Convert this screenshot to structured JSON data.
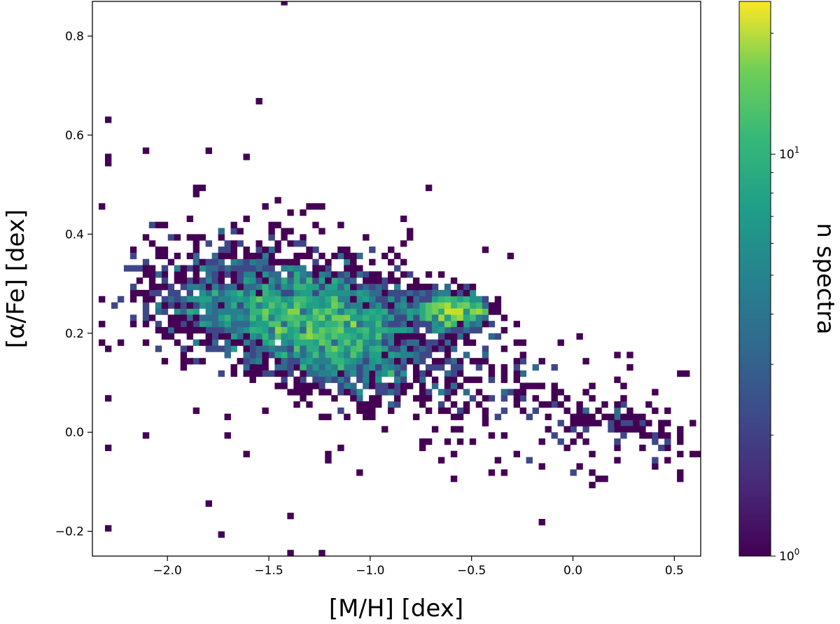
{
  "chart_data": {
    "type": "heatmap",
    "xlabel": "[M/H] [dex]",
    "ylabel": "[α/Fe] [dex]",
    "xlim": [
      -2.37,
      0.63
    ],
    "ylim": [
      -0.25,
      0.87
    ],
    "x_ticks": [
      {
        "value": -2.0,
        "label": "−2.0"
      },
      {
        "value": -1.5,
        "label": "−1.5"
      },
      {
        "value": -1.0,
        "label": "−1.0"
      },
      {
        "value": -0.5,
        "label": "−0.5"
      },
      {
        "value": 0.0,
        "label": "0.0"
      },
      {
        "value": 0.5,
        "label": "0.5"
      }
    ],
    "y_ticks": [
      {
        "value": -0.2,
        "label": "−0.2"
      },
      {
        "value": 0.0,
        "label": "0.0"
      },
      {
        "value": 0.2,
        "label": "0.2"
      },
      {
        "value": 0.4,
        "label": "0.4"
      },
      {
        "value": 0.6,
        "label": "0.6"
      },
      {
        "value": 0.8,
        "label": "0.8"
      }
    ],
    "colorbar": {
      "label": "n spectra",
      "scale": "log",
      "colormap": "viridis",
      "range": [
        1,
        24
      ],
      "ticks": [
        {
          "value": 1,
          "label_base": "10",
          "label_exp": "0"
        },
        {
          "value": 10,
          "label_base": "10",
          "label_exp": "1"
        }
      ]
    },
    "grid": false,
    "bin_size": {
      "x": 0.031,
      "y": 0.0125
    },
    "clusters": [
      {
        "center": [
          -1.35,
          0.24
        ],
        "count": 2200,
        "spread": [
          0.33,
          0.055
        ],
        "corr": -0.25
      },
      {
        "center": [
          -1.15,
          0.16
        ],
        "count": 700,
        "spread": [
          0.25,
          0.05
        ],
        "corr": -0.4
      },
      {
        "center": [
          -0.6,
          0.245
        ],
        "count": 500,
        "spread": [
          0.1,
          0.018
        ],
        "corr": 0
      },
      {
        "center": [
          -0.5,
          0.1
        ],
        "count": 350,
        "spread": [
          0.5,
          0.09
        ],
        "corr": -0.55
      },
      {
        "center": [
          0.25,
          0.02
        ],
        "count": 60,
        "spread": [
          0.18,
          0.02
        ],
        "corr": -0.6
      },
      {
        "center": [
          -1.6,
          0.33
        ],
        "count": 220,
        "spread": [
          0.4,
          0.06
        ],
        "corr": 0
      }
    ],
    "isolated_points": [
      [
        -1.42,
        0.87
      ],
      [
        -1.55,
        0.665
      ],
      [
        -2.28,
        0.635
      ],
      [
        -2.3,
        0.55
      ],
      [
        -2.3,
        0.54
      ],
      [
        -2.1,
        0.57
      ],
      [
        -1.8,
        0.57
      ],
      [
        -1.62,
        0.555
      ],
      [
        -0.72,
        0.495
      ],
      [
        -2.3,
        0.07
      ],
      [
        -2.3,
        -0.03
      ],
      [
        -1.8,
        -0.14
      ],
      [
        -1.75,
        -0.21
      ],
      [
        -2.3,
        -0.19
      ],
      [
        -1.38,
        -0.17
      ],
      [
        -1.38,
        -0.24
      ],
      [
        -1.25,
        -0.24
      ],
      [
        -1.7,
        -0.005
      ],
      [
        -2.1,
        -0.01
      ],
      [
        -1.6,
        -0.04
      ],
      [
        -1.2,
        -0.06
      ],
      [
        -1.05,
        -0.085
      ],
      [
        0.61,
        -0.04
      ],
      [
        0.58,
        -0.04
      ],
      [
        0.52,
        -0.02
      ],
      [
        0.45,
        -0.03
      ],
      [
        0.4,
        0.05
      ],
      [
        -0.4,
        -0.075
      ],
      [
        -0.65,
        -0.06
      ]
    ]
  }
}
